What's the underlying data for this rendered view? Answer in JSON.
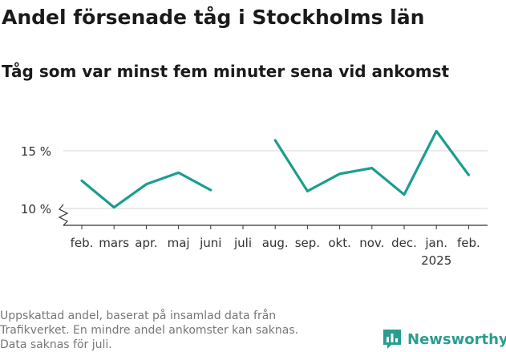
{
  "title": "Andel försenade tåg i Stockholms län",
  "subtitle": "Tåg som var minst fem minuter sena vid ankomst",
  "footnote": [
    "Uppskattad andel, baserat på insamlad data från",
    "Trafikverket. En mindre andel ankomster kan saknas.",
    "Data saknas för juli."
  ],
  "brand": {
    "name": "Newsworthy",
    "icon": "newsworthy-logo-icon",
    "color": "#2a9d90"
  },
  "chart_data": {
    "type": "line",
    "categories": [
      "feb.",
      "mars",
      "apr.",
      "maj",
      "juni",
      "juli",
      "aug.",
      "sep.",
      "okt.",
      "nov.",
      "dec.",
      "jan.",
      "feb."
    ],
    "year_labels": [
      "",
      "",
      "",
      "",
      "",
      "",
      "",
      "",
      "",
      "",
      "",
      "2025",
      ""
    ],
    "series": [
      {
        "values": [
          12.4,
          10.1,
          12.1,
          13.1,
          11.6,
          null,
          15.9,
          11.5,
          13.0,
          13.5,
          11.2,
          16.7,
          12.9
        ],
        "color": "#1a9e90"
      }
    ],
    "y_ticks": [
      10,
      15
    ],
    "y_tick_labels": [
      "10 %",
      "15 %"
    ],
    "ylim": [
      8.5,
      17
    ],
    "axis_break": true,
    "grid": true,
    "colors": {
      "line": "#1a9e90",
      "grid": "#dddddd",
      "axis": "#333333"
    }
  }
}
